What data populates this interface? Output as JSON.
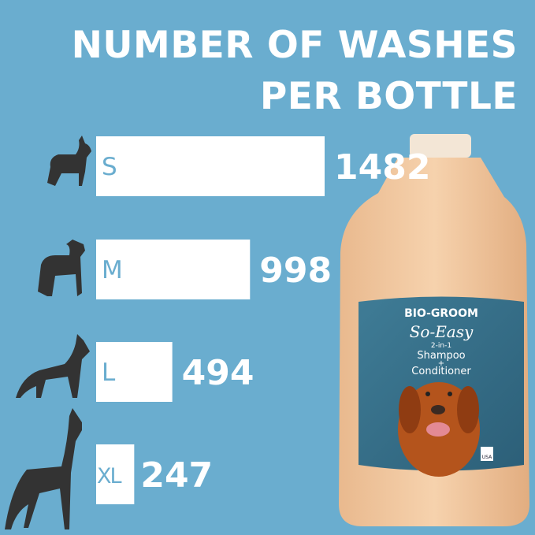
{
  "chart_data": {
    "type": "bar",
    "orientation": "horizontal",
    "title": [
      "NUMBER OF WASHES",
      "PER BOTTLE"
    ],
    "categories": [
      "S",
      "M",
      "L",
      "XL"
    ],
    "values": [
      1482,
      998,
      494,
      247
    ],
    "icons": [
      "small-dog-silhouette-icon",
      "medium-dog-silhouette-icon",
      "large-dog-silhouette-icon",
      "xl-dog-silhouette-icon"
    ],
    "bar_color": "#ffffff",
    "category_label_color": "#6aadcf",
    "value_label_color": "#ffffff",
    "background_color": "#6aadcf",
    "icon_color": "#333333",
    "grid": false
  },
  "product": {
    "brand": "BIO-GROOM",
    "name": "So-Easy",
    "line1": "2-in-1",
    "line2": "Shampoo",
    "line3": "+",
    "line4": "Conditioner",
    "badge": "USA"
  }
}
